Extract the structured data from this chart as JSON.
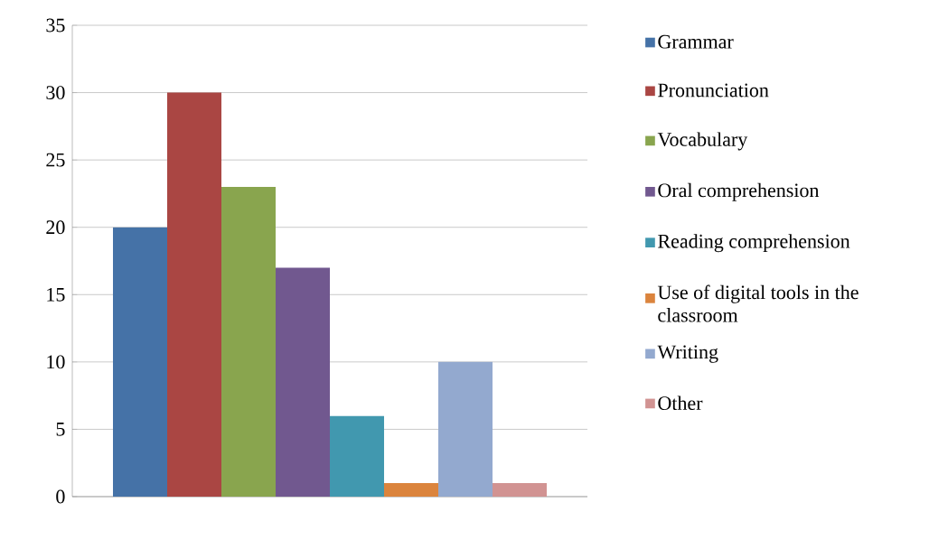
{
  "chart_data": {
    "type": "bar",
    "categories": [
      null
    ],
    "series": [
      {
        "name": "Grammar",
        "color": "#4572a7",
        "values": [
          20
        ]
      },
      {
        "name": "Pronunciation",
        "color": "#aa4643",
        "values": [
          30
        ]
      },
      {
        "name": "Vocabulary",
        "color": "#89a54e",
        "values": [
          23
        ]
      },
      {
        "name": "Oral comprehension",
        "color": "#71588f",
        "values": [
          17
        ]
      },
      {
        "name": "Reading comprehension",
        "color": "#4198af",
        "values": [
          6
        ]
      },
      {
        "name": "Use of digital tools in the classroom",
        "color": "#db843d",
        "values": [
          1
        ]
      },
      {
        "name": "Writing",
        "color": "#93a9cf",
        "values": [
          10
        ]
      },
      {
        "name": "Other",
        "color": "#d19392",
        "values": [
          1
        ]
      }
    ],
    "ylim": [
      0,
      35
    ],
    "yticks": [
      0,
      5,
      10,
      15,
      20,
      25,
      30,
      35
    ],
    "grid": "y",
    "legend": "right"
  }
}
